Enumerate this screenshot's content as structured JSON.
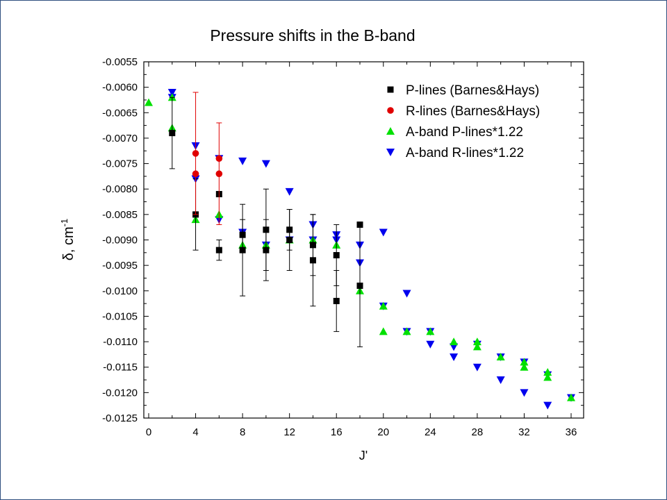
{
  "colors": {
    "frame": "#2f4f7f",
    "p_lines_bh": "#000000",
    "r_lines_bh": "#e00000",
    "a_p_lines": "#00e000",
    "a_r_lines": "#0000ee"
  },
  "chart_data": {
    "type": "scatter",
    "title": "Pressure shifts in the B-band",
    "ylabel": "δ, cm",
    "ylabel_sup": "-1",
    "xlabel": "J'",
    "xlim": [
      -1,
      37
    ],
    "ylim": [
      -0.0125,
      -0.0055
    ],
    "xticks": [
      0,
      4,
      8,
      12,
      16,
      20,
      24,
      28,
      32,
      36
    ],
    "yticks": [
      -0.0055,
      -0.006,
      -0.0065,
      -0.007,
      -0.0075,
      -0.008,
      -0.0085,
      -0.009,
      -0.0095,
      -0.01,
      -0.0105,
      -0.011,
      -0.0115,
      -0.012,
      -0.0125
    ],
    "ytick_labels": [
      "-0.0055",
      "-0.0060",
      "-0.0065",
      "-0.0070",
      "-0.0075",
      "-0.0080",
      "-0.0085",
      "-0.0090",
      "-0.0095",
      "-0.0100",
      "-0.0105",
      "-0.0110",
      "-0.0115",
      "-0.0120",
      "-0.0125"
    ],
    "grid": false,
    "legend_position": "top-right",
    "series": [
      {
        "name": "P-lines (Barnes&Hays)",
        "marker": "square",
        "color_key": "p_lines_bh",
        "points": [
          {
            "x": 2,
            "y": -0.0069,
            "err": 0.0007
          },
          {
            "x": 4,
            "y": -0.0085,
            "err": 0.0007
          },
          {
            "x": 6,
            "y": -0.0092,
            "err": 0.0002
          },
          {
            "x": 6,
            "y": -0.0081,
            "err": null
          },
          {
            "x": 8,
            "y": -0.0089,
            "err": 0.0003
          },
          {
            "x": 8,
            "y": -0.0092,
            "err": 0.0009
          },
          {
            "x": 10,
            "y": -0.0088,
            "err": 0.0008
          },
          {
            "x": 10,
            "y": -0.0092,
            "err": 0.0006
          },
          {
            "x": 12,
            "y": -0.0088,
            "err": 0.0004
          },
          {
            "x": 12,
            "y": -0.009,
            "err": 0.0006
          },
          {
            "x": 14,
            "y": -0.0091,
            "err": 0.0006
          },
          {
            "x": 14,
            "y": -0.0094,
            "err": 0.0009
          },
          {
            "x": 16,
            "y": -0.0093,
            "err": 0.0006
          },
          {
            "x": 16,
            "y": -0.0102,
            "err": 0.0006
          },
          {
            "x": 18,
            "y": -0.0087,
            "err": null
          },
          {
            "x": 18,
            "y": -0.0099,
            "err": 0.0012
          }
        ]
      },
      {
        "name": "R-lines (Barnes&Hays)",
        "marker": "circle",
        "color_key": "r_lines_bh",
        "points": [
          {
            "x": 4,
            "y": -0.0073,
            "err": 0.0012
          },
          {
            "x": 4,
            "y": -0.0077,
            "err": null
          },
          {
            "x": 6,
            "y": -0.0074,
            "err": null
          },
          {
            "x": 6,
            "y": -0.0077,
            "err": 0.001
          }
        ]
      },
      {
        "name": "A-band P-lines*1.22",
        "marker": "triangle-up",
        "color_key": "a_p_lines",
        "points": [
          {
            "x": 0,
            "y": -0.0063
          },
          {
            "x": 2,
            "y": -0.0062
          },
          {
            "x": 2,
            "y": -0.0068
          },
          {
            "x": 4,
            "y": -0.0086
          },
          {
            "x": 6,
            "y": -0.0085
          },
          {
            "x": 8,
            "y": -0.0091
          },
          {
            "x": 10,
            "y": -0.0091
          },
          {
            "x": 12,
            "y": -0.009
          },
          {
            "x": 14,
            "y": -0.009
          },
          {
            "x": 16,
            "y": -0.0091
          },
          {
            "x": 18,
            "y": -0.01
          },
          {
            "x": 20,
            "y": -0.0103
          },
          {
            "x": 20,
            "y": -0.0108
          },
          {
            "x": 22,
            "y": -0.0108
          },
          {
            "x": 24,
            "y": -0.0108
          },
          {
            "x": 26,
            "y": -0.011
          },
          {
            "x": 28,
            "y": -0.011
          },
          {
            "x": 28,
            "y": -0.0111
          },
          {
            "x": 30,
            "y": -0.0113
          },
          {
            "x": 32,
            "y": -0.0114
          },
          {
            "x": 32,
            "y": -0.0115
          },
          {
            "x": 34,
            "y": -0.0116
          },
          {
            "x": 34,
            "y": -0.0117
          },
          {
            "x": 36,
            "y": -0.0121
          }
        ]
      },
      {
        "name": "A-band R-lines*1.22",
        "marker": "triangle-down",
        "color_key": "a_r_lines",
        "points": [
          {
            "x": 2,
            "y": -0.0061
          },
          {
            "x": 2,
            "y": -0.0062
          },
          {
            "x": 4,
            "y": -0.00715
          },
          {
            "x": 4,
            "y": -0.0078
          },
          {
            "x": 6,
            "y": -0.0074
          },
          {
            "x": 6,
            "y": -0.0086
          },
          {
            "x": 8,
            "y": -0.00745
          },
          {
            "x": 8,
            "y": -0.00885
          },
          {
            "x": 10,
            "y": -0.0075
          },
          {
            "x": 10,
            "y": -0.0091
          },
          {
            "x": 12,
            "y": -0.00805
          },
          {
            "x": 12,
            "y": -0.009
          },
          {
            "x": 14,
            "y": -0.0087
          },
          {
            "x": 14,
            "y": -0.009
          },
          {
            "x": 16,
            "y": -0.0089
          },
          {
            "x": 16,
            "y": -0.009
          },
          {
            "x": 18,
            "y": -0.0091
          },
          {
            "x": 18,
            "y": -0.00945
          },
          {
            "x": 20,
            "y": -0.00885
          },
          {
            "x": 20,
            "y": -0.0103
          },
          {
            "x": 22,
            "y": -0.01005
          },
          {
            "x": 22,
            "y": -0.0108
          },
          {
            "x": 24,
            "y": -0.0108
          },
          {
            "x": 24,
            "y": -0.01105
          },
          {
            "x": 26,
            "y": -0.0111
          },
          {
            "x": 26,
            "y": -0.0113
          },
          {
            "x": 28,
            "y": -0.01105
          },
          {
            "x": 28,
            "y": -0.0115
          },
          {
            "x": 30,
            "y": -0.0113
          },
          {
            "x": 30,
            "y": -0.01175
          },
          {
            "x": 32,
            "y": -0.0114
          },
          {
            "x": 32,
            "y": -0.012
          },
          {
            "x": 34,
            "y": -0.01165
          },
          {
            "x": 34,
            "y": -0.01225
          },
          {
            "x": 36,
            "y": -0.0121
          }
        ]
      }
    ]
  }
}
